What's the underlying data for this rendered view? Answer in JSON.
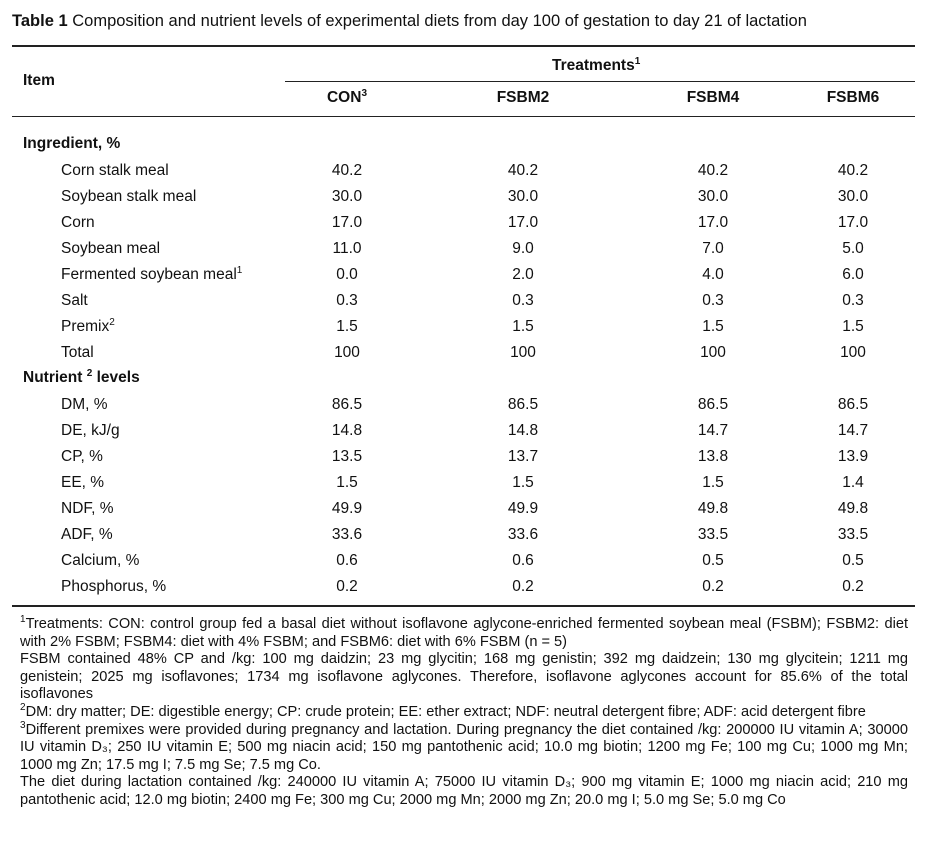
{
  "caption": {
    "label": "Table 1",
    "text": "Composition and nutrient levels of experimental diets from day 100 of gestation to day 21 of lactation"
  },
  "header": {
    "item": "Item",
    "treatments": "Treatments",
    "treatments_sup": "1",
    "columns": [
      {
        "label": "CON",
        "sup": "3"
      },
      {
        "label": "FSBM2",
        "sup": ""
      },
      {
        "label": "FSBM4",
        "sup": ""
      },
      {
        "label": "FSBM6",
        "sup": ""
      }
    ]
  },
  "ingredient_section": {
    "title": "Ingredient, %",
    "rows": [
      {
        "name": "Corn stalk meal",
        "sup": "",
        "values": [
          "40.2",
          "40.2",
          "40.2",
          "40.2"
        ]
      },
      {
        "name": "Soybean stalk meal",
        "sup": "",
        "values": [
          "30.0",
          "30.0",
          "30.0",
          "30.0"
        ]
      },
      {
        "name": "Corn",
        "sup": "",
        "values": [
          "17.0",
          "17.0",
          "17.0",
          "17.0"
        ]
      },
      {
        "name": "Soybean meal",
        "sup": "",
        "values": [
          "11.0",
          "9.0",
          "7.0",
          "5.0"
        ]
      },
      {
        "name": "Fermented soybean meal",
        "sup": "1",
        "values": [
          "0.0",
          "2.0",
          "4.0",
          "6.0"
        ]
      },
      {
        "name": "Salt",
        "sup": "",
        "values": [
          "0.3",
          "0.3",
          "0.3",
          "0.3"
        ]
      },
      {
        "name": "Premix",
        "sup": "2",
        "values": [
          "1.5",
          "1.5",
          "1.5",
          "1.5"
        ]
      },
      {
        "name": "Total",
        "sup": "",
        "values": [
          "100",
          "100",
          "100",
          "100"
        ]
      }
    ]
  },
  "nutrient_section": {
    "title_a": "Nutrient",
    "title_sup": "2",
    "title_b": "levels",
    "rows": [
      {
        "name": "DM, %",
        "sup": "",
        "values": [
          "86.5",
          "86.5",
          "86.5",
          "86.5"
        ]
      },
      {
        "name": "DE, kJ/g",
        "sup": "",
        "values": [
          "14.8",
          "14.8",
          "14.7",
          "14.7"
        ]
      },
      {
        "name": "CP, %",
        "sup": "",
        "values": [
          "13.5",
          "13.7",
          "13.8",
          "13.9"
        ]
      },
      {
        "name": "EE, %",
        "sup": "",
        "values": [
          "1.5",
          "1.5",
          "1.5",
          "1.4"
        ]
      },
      {
        "name": "NDF, %",
        "sup": "",
        "values": [
          "49.9",
          "49.9",
          "49.8",
          "49.8"
        ]
      },
      {
        "name": "ADF, %",
        "sup": "",
        "values": [
          "33.6",
          "33.6",
          "33.5",
          "33.5"
        ]
      },
      {
        "name": "Calcium, %",
        "sup": "",
        "values": [
          "0.6",
          "0.6",
          "0.5",
          "0.5"
        ]
      },
      {
        "name": "Phosphorus, %",
        "sup": "",
        "values": [
          "0.2",
          "0.2",
          "0.2",
          "0.2"
        ]
      }
    ]
  },
  "footnotes": {
    "n1_sup": "1",
    "n1": "Treatments: CON: control group fed a basal diet without isoflavone aglycone-enriched fermented soybean meal (FSBM); FSBM2: diet with 2% FSBM; FSBM4: diet with 4% FSBM; and FSBM6: diet with 6% FSBM (n = 5)",
    "n1b": "FSBM contained 48% CP and /kg: 100 mg daidzin; 23 mg glycitin; 168 mg genistin; 392 mg daidzein; 130 mg glycitein; 1211 mg genistein; 2025 mg isoflavones; 1734 mg isoflavone aglycones. Therefore, isoflavone aglycones account for 85.6% of the total isoflavones",
    "n2_sup": "2",
    "n2": "DM: dry matter; DE: digestible energy; CP: crude protein; EE: ether extract; NDF: neutral detergent fibre; ADF: acid detergent fibre",
    "n3_sup": "3",
    "n3": "Different premixes were provided during pregnancy and lactation. During pregnancy the diet contained /kg: 200000 IU vitamin A; 30000 IU vitamin D₃; 250 IU vitamin E; 500 mg niacin acid; 150 mg pantothenic acid; 10.0 mg biotin; 1200 mg Fe; 100 mg Cu; 1000 mg Mn; 1000 mg Zn; 17.5 mg I; 7.5 mg Se; 7.5 mg Co.",
    "n3b": "The diet during lactation contained /kg: 240000 IU vitamin A; 75000 IU vitamin D₃; 900 mg vitamin E; 1000 mg niacin acid; 210 mg pantothenic acid; 12.0 mg biotin; 2400 mg Fe; 300 mg Cu; 2000 mg Mn; 2000 mg Zn; 20.0 mg I; 5.0 mg Se; 5.0 mg Co"
  }
}
